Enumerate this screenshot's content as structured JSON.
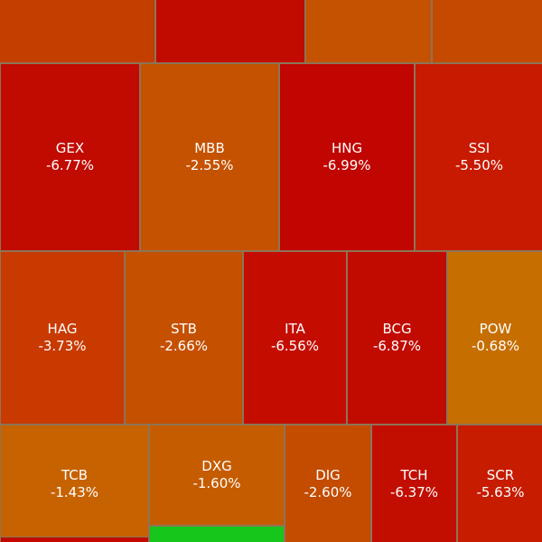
{
  "chart_data": {
    "type": "heatmap",
    "colors": {
      "deep_red": "#c10a00",
      "red": "#c81a00",
      "red_orange": "#c93500",
      "orange_red": "#c43e00",
      "orange": "#c45200",
      "dark_orange": "#c76000",
      "amber": "#c66e00",
      "green": "#17c61a"
    },
    "tiles": [
      {
        "ticker": "",
        "change": "",
        "color": "#c43e00"
      },
      {
        "ticker": "",
        "change": "",
        "color": "#c10a00"
      },
      {
        "ticker": "",
        "change": "",
        "color": "#c45200"
      },
      {
        "ticker": "",
        "change": "",
        "color": "#c44a00"
      },
      {
        "ticker": "GEX",
        "change": "-6.77%",
        "color": "#c10a00"
      },
      {
        "ticker": "MBB",
        "change": "-2.55%",
        "color": "#c55200"
      },
      {
        "ticker": "HNG",
        "change": "-6.99%",
        "color": "#c10500"
      },
      {
        "ticker": "SSI",
        "change": "-5.50%",
        "color": "#c81a00"
      },
      {
        "ticker": "HAG",
        "change": "-3.73%",
        "color": "#c83a00"
      },
      {
        "ticker": "STB",
        "change": "-2.66%",
        "color": "#c45000"
      },
      {
        "ticker": "ITA",
        "change": "-6.56%",
        "color": "#c40d00"
      },
      {
        "ticker": "BCG",
        "change": "-6.87%",
        "color": "#c10a00"
      },
      {
        "ticker": "POW",
        "change": "-0.68%",
        "color": "#c66e00"
      },
      {
        "ticker": "TCB",
        "change": "-1.43%",
        "color": "#c76200"
      },
      {
        "ticker": "DXG",
        "change": "-1.60%",
        "color": "#c55c00"
      },
      {
        "ticker": "DIG",
        "change": "-2.60%",
        "color": "#c34c00"
      },
      {
        "ticker": "TCH",
        "change": "-6.37%",
        "color": "#c20e00"
      },
      {
        "ticker": "SCR",
        "change": "-5.63%",
        "color": "#c71c00"
      },
      {
        "ticker": "",
        "change": "",
        "color": "#17c61a"
      },
      {
        "ticker": "",
        "change": "",
        "color": "#c10a00"
      }
    ]
  }
}
